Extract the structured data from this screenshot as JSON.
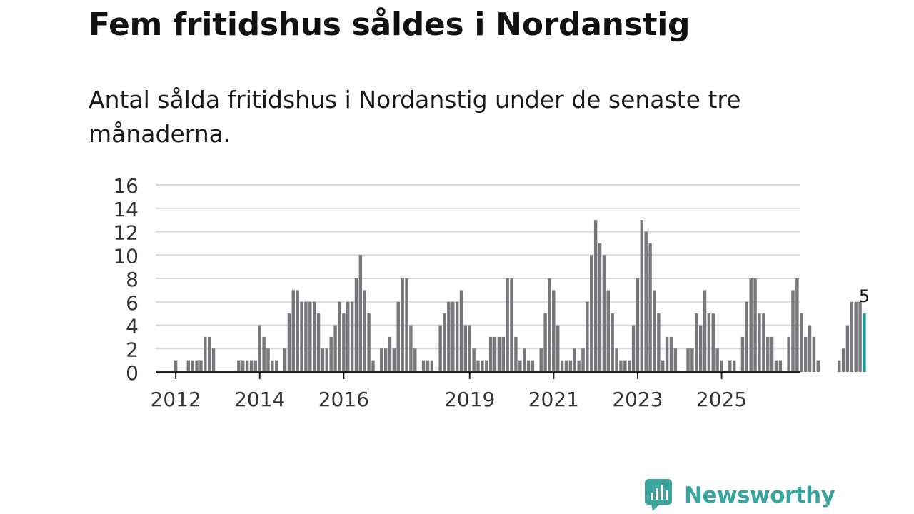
{
  "title": "Fem fritidshus såldes i Nordanstig",
  "subtitle": "Antal sålda fritidshus i Nordanstig under de senaste tre månaderna.",
  "brand": {
    "name": "Newsworthy",
    "icon": "bar-chart-speech-bubble-icon",
    "color": "#3aa59e"
  },
  "chart_data": {
    "type": "bar",
    "title": "Fem fritidshus såldes i Nordanstig",
    "xlabel": "",
    "ylabel": "",
    "ylim": [
      0,
      16
    ],
    "yticks": [
      "0",
      "2",
      "4",
      "6",
      "8",
      "10",
      "12",
      "14",
      "16"
    ],
    "xticks": [
      {
        "label": "2012",
        "index": 3
      },
      {
        "label": "2014",
        "index": 23
      },
      {
        "label": "2016",
        "index": 43
      },
      {
        "label": "2019",
        "index": 73
      },
      {
        "label": "2021",
        "index": 93
      },
      {
        "label": "2023",
        "index": 113
      },
      {
        "label": "2025",
        "index": 133
      }
    ],
    "bar_color": "#77767b",
    "highlight_color": "#1d9b96",
    "values": [
      0,
      0,
      0,
      1,
      0,
      0,
      1,
      1,
      1,
      1,
      3,
      3,
      2,
      0,
      0,
      0,
      0,
      0,
      1,
      1,
      1,
      1,
      1,
      4,
      3,
      2,
      1,
      1,
      0,
      2,
      5,
      7,
      7,
      6,
      6,
      6,
      6,
      5,
      2,
      2,
      3,
      4,
      6,
      5,
      6,
      6,
      8,
      10,
      7,
      5,
      1,
      0,
      2,
      2,
      3,
      2,
      6,
      8,
      8,
      4,
      2,
      0,
      1,
      1,
      1,
      0,
      4,
      5,
      6,
      6,
      6,
      7,
      4,
      4,
      2,
      1,
      1,
      1,
      3,
      3,
      3,
      3,
      8,
      8,
      3,
      1,
      2,
      1,
      1,
      0,
      2,
      5,
      8,
      7,
      4,
      1,
      1,
      1,
      2,
      1,
      2,
      6,
      10,
      13,
      11,
      10,
      7,
      5,
      2,
      1,
      1,
      1,
      4,
      8,
      13,
      12,
      11,
      7,
      5,
      1,
      3,
      3,
      2,
      0,
      0,
      2,
      2,
      5,
      4,
      7,
      5,
      5,
      2,
      1,
      0,
      1,
      1,
      0,
      3,
      6,
      8,
      8,
      5,
      5,
      3,
      3,
      1,
      1,
      0,
      3,
      7,
      8,
      5,
      3,
      4,
      3,
      1,
      0,
      0,
      0,
      0,
      1,
      2,
      4,
      6,
      6,
      6,
      5
    ],
    "last_value_label": "5"
  }
}
